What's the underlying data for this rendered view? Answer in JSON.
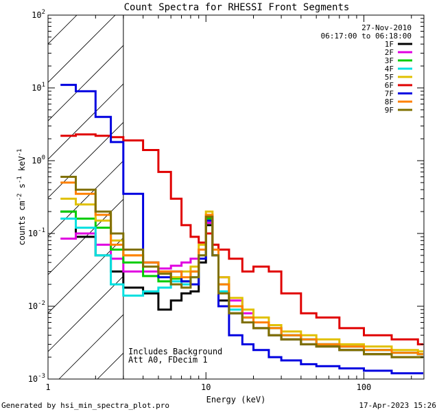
{
  "chart_data": {
    "type": "line",
    "title": "Count Spectra for RHESSI Front Segments",
    "xlabel": "Energy (keV)",
    "ylabel_parts": [
      "counts cm",
      "-2",
      " s",
      "-1",
      " keV",
      "-1"
    ],
    "xscale": "log",
    "yscale": "log",
    "xlim": [
      1,
      240
    ],
    "ylim": [
      0.001,
      100
    ],
    "x_ticks": [
      {
        "value": 1,
        "label": "1"
      },
      {
        "value": 10,
        "label": "10"
      },
      {
        "value": 100,
        "label": "100"
      }
    ],
    "y_ticks": [
      {
        "value": 0.001,
        "base": "10",
        "exp": "-3"
      },
      {
        "value": 0.01,
        "base": "10",
        "exp": "-2"
      },
      {
        "value": 0.1,
        "base": "10",
        "exp": "-1"
      },
      {
        "value": 1,
        "base": "10",
        "exp": "0"
      },
      {
        "value": 10,
        "base": "10",
        "exp": "1"
      },
      {
        "value": 100,
        "base": "10",
        "exp": "2"
      }
    ],
    "shaded_region": {
      "x_from": 1,
      "x_to": 3,
      "style": "hatched"
    },
    "date": "27-Nov-2010",
    "time_range": "06:17:00 to 06:18:00",
    "notes": [
      "Includes Background",
      "Att A0, FDecim 1"
    ],
    "series": [
      {
        "name": "1F",
        "color": "#000000",
        "points": [
          [
            1.2,
            0.2
          ],
          [
            1.5,
            0.09
          ],
          [
            2,
            0.05
          ],
          [
            2.5,
            0.03
          ],
          [
            3,
            0.018
          ],
          [
            4,
            0.015
          ],
          [
            5,
            0.009
          ],
          [
            6,
            0.012
          ],
          [
            7,
            0.015
          ],
          [
            8,
            0.016
          ],
          [
            9,
            0.04
          ],
          [
            10,
            0.13
          ],
          [
            11,
            0.05
          ],
          [
            12,
            0.012
          ],
          [
            14,
            0.008
          ],
          [
            17,
            0.006
          ],
          [
            20,
            0.005
          ],
          [
            25,
            0.004
          ],
          [
            30,
            0.0035
          ],
          [
            40,
            0.003
          ],
          [
            50,
            0.0028
          ],
          [
            70,
            0.0025
          ],
          [
            100,
            0.0022
          ],
          [
            150,
            0.002
          ],
          [
            220,
            0.002
          ]
        ]
      },
      {
        "name": "2F",
        "color": "#e000e0",
        "points": [
          [
            1.2,
            0.085
          ],
          [
            1.5,
            0.1
          ],
          [
            2,
            0.07
          ],
          [
            2.5,
            0.045
          ],
          [
            3,
            0.03
          ],
          [
            4,
            0.03
          ],
          [
            5,
            0.033
          ],
          [
            6,
            0.036
          ],
          [
            7,
            0.04
          ],
          [
            8,
            0.045
          ],
          [
            9,
            0.06
          ],
          [
            10,
            0.14
          ],
          [
            11,
            0.06
          ],
          [
            12,
            0.025
          ],
          [
            14,
            0.012
          ],
          [
            17,
            0.008
          ],
          [
            20,
            0.006
          ],
          [
            25,
            0.005
          ],
          [
            30,
            0.004
          ],
          [
            40,
            0.0035
          ],
          [
            50,
            0.003
          ],
          [
            70,
            0.0028
          ],
          [
            100,
            0.0025
          ],
          [
            150,
            0.0023
          ],
          [
            220,
            0.0022
          ]
        ]
      },
      {
        "name": "3F",
        "color": "#00cc00",
        "points": [
          [
            1.2,
            0.2
          ],
          [
            1.5,
            0.16
          ],
          [
            2,
            0.12
          ],
          [
            2.5,
            0.06
          ],
          [
            3,
            0.04
          ],
          [
            4,
            0.026
          ],
          [
            5,
            0.022
          ],
          [
            6,
            0.024
          ],
          [
            7,
            0.022
          ],
          [
            8,
            0.03
          ],
          [
            9,
            0.06
          ],
          [
            10,
            0.16
          ],
          [
            11,
            0.06
          ],
          [
            12,
            0.02
          ],
          [
            14,
            0.01
          ],
          [
            17,
            0.007
          ],
          [
            20,
            0.006
          ],
          [
            25,
            0.005
          ],
          [
            30,
            0.004
          ],
          [
            40,
            0.0035
          ],
          [
            50,
            0.003
          ],
          [
            70,
            0.0028
          ],
          [
            100,
            0.0025
          ],
          [
            150,
            0.0023
          ],
          [
            220,
            0.0022
          ]
        ]
      },
      {
        "name": "4F",
        "color": "#00e0e0",
        "points": [
          [
            1.2,
            0.16
          ],
          [
            1.5,
            0.12
          ],
          [
            2,
            0.05
          ],
          [
            2.5,
            0.02
          ],
          [
            3,
            0.014
          ],
          [
            4,
            0.016
          ],
          [
            5,
            0.018
          ],
          [
            6,
            0.022
          ],
          [
            7,
            0.02
          ],
          [
            8,
            0.025
          ],
          [
            9,
            0.05
          ],
          [
            10,
            0.15
          ],
          [
            11,
            0.05
          ],
          [
            12,
            0.016
          ],
          [
            14,
            0.009
          ],
          [
            17,
            0.007
          ],
          [
            20,
            0.006
          ],
          [
            25,
            0.005
          ],
          [
            30,
            0.004
          ],
          [
            40,
            0.0035
          ],
          [
            50,
            0.003
          ],
          [
            70,
            0.0028
          ],
          [
            100,
            0.0025
          ],
          [
            150,
            0.0023
          ],
          [
            220,
            0.0022
          ]
        ]
      },
      {
        "name": "5F",
        "color": "#e0c000",
        "points": [
          [
            1.2,
            0.3
          ],
          [
            1.5,
            0.25
          ],
          [
            2,
            0.15
          ],
          [
            2.5,
            0.08
          ],
          [
            3,
            0.05
          ],
          [
            4,
            0.04
          ],
          [
            5,
            0.03
          ],
          [
            6,
            0.025
          ],
          [
            7,
            0.03
          ],
          [
            8,
            0.035
          ],
          [
            9,
            0.07
          ],
          [
            10,
            0.2
          ],
          [
            11,
            0.07
          ],
          [
            12,
            0.025
          ],
          [
            14,
            0.013
          ],
          [
            17,
            0.009
          ],
          [
            20,
            0.007
          ],
          [
            25,
            0.0055
          ],
          [
            30,
            0.0045
          ],
          [
            40,
            0.004
          ],
          [
            50,
            0.0035
          ],
          [
            70,
            0.003
          ],
          [
            100,
            0.0028
          ],
          [
            150,
            0.0025
          ],
          [
            220,
            0.0024
          ]
        ]
      },
      {
        "name": "6F",
        "color": "#e00000",
        "points": [
          [
            1.2,
            2.2
          ],
          [
            1.5,
            2.3
          ],
          [
            2,
            2.2
          ],
          [
            2.5,
            2.1
          ],
          [
            3,
            1.9
          ],
          [
            4,
            1.4
          ],
          [
            5,
            0.7
          ],
          [
            6,
            0.3
          ],
          [
            7,
            0.13
          ],
          [
            8,
            0.09
          ],
          [
            9,
            0.075
          ],
          [
            10,
            0.1
          ],
          [
            11,
            0.07
          ],
          [
            12,
            0.06
          ],
          [
            14,
            0.045
          ],
          [
            17,
            0.03
          ],
          [
            20,
            0.035
          ],
          [
            25,
            0.03
          ],
          [
            30,
            0.015
          ],
          [
            40,
            0.008
          ],
          [
            50,
            0.007
          ],
          [
            70,
            0.005
          ],
          [
            100,
            0.004
          ],
          [
            150,
            0.0035
          ],
          [
            220,
            0.003
          ]
        ]
      },
      {
        "name": "7F",
        "color": "#0000e0",
        "points": [
          [
            1.2,
            11
          ],
          [
            1.5,
            9
          ],
          [
            2,
            4
          ],
          [
            2.5,
            1.8
          ],
          [
            3,
            0.35
          ],
          [
            4,
            0.04
          ],
          [
            5,
            0.025
          ],
          [
            6,
            0.03
          ],
          [
            7,
            0.022
          ],
          [
            8,
            0.02
          ],
          [
            9,
            0.045
          ],
          [
            10,
            0.15
          ],
          [
            11,
            0.05
          ],
          [
            12,
            0.01
          ],
          [
            14,
            0.004
          ],
          [
            17,
            0.003
          ],
          [
            20,
            0.0025
          ],
          [
            25,
            0.002
          ],
          [
            30,
            0.0018
          ],
          [
            40,
            0.0016
          ],
          [
            50,
            0.0015
          ],
          [
            70,
            0.0014
          ],
          [
            100,
            0.0013
          ],
          [
            150,
            0.0012
          ],
          [
            220,
            0.0012
          ]
        ]
      },
      {
        "name": "8F",
        "color": "#ff8000",
        "points": [
          [
            1.2,
            0.5
          ],
          [
            1.5,
            0.35
          ],
          [
            2,
            0.18
          ],
          [
            2.5,
            0.07
          ],
          [
            3,
            0.05
          ],
          [
            4,
            0.04
          ],
          [
            5,
            0.03
          ],
          [
            6,
            0.03
          ],
          [
            7,
            0.025
          ],
          [
            8,
            0.03
          ],
          [
            9,
            0.06
          ],
          [
            10,
            0.18
          ],
          [
            11,
            0.06
          ],
          [
            12,
            0.02
          ],
          [
            14,
            0.01
          ],
          [
            17,
            0.007
          ],
          [
            20,
            0.006
          ],
          [
            25,
            0.005
          ],
          [
            30,
            0.004
          ],
          [
            40,
            0.0035
          ],
          [
            50,
            0.003
          ],
          [
            70,
            0.0028
          ],
          [
            100,
            0.0025
          ],
          [
            150,
            0.0023
          ],
          [
            220,
            0.0022
          ]
        ]
      },
      {
        "name": "9F",
        "color": "#807000",
        "points": [
          [
            1.2,
            0.6
          ],
          [
            1.5,
            0.4
          ],
          [
            2,
            0.2
          ],
          [
            2.5,
            0.1
          ],
          [
            3,
            0.06
          ],
          [
            4,
            0.035
          ],
          [
            5,
            0.028
          ],
          [
            6,
            0.02
          ],
          [
            7,
            0.018
          ],
          [
            8,
            0.025
          ],
          [
            9,
            0.05
          ],
          [
            10,
            0.17
          ],
          [
            11,
            0.05
          ],
          [
            12,
            0.015
          ],
          [
            14,
            0.008
          ],
          [
            17,
            0.006
          ],
          [
            20,
            0.005
          ],
          [
            25,
            0.004
          ],
          [
            30,
            0.0035
          ],
          [
            40,
            0.003
          ],
          [
            50,
            0.0028
          ],
          [
            70,
            0.0025
          ],
          [
            100,
            0.0022
          ],
          [
            150,
            0.002
          ],
          [
            220,
            0.002
          ]
        ]
      }
    ]
  },
  "footer": {
    "generator": "Generated by hsi_min_spectra_plot.pro",
    "timestamp": "17-Apr-2023 15:26"
  }
}
